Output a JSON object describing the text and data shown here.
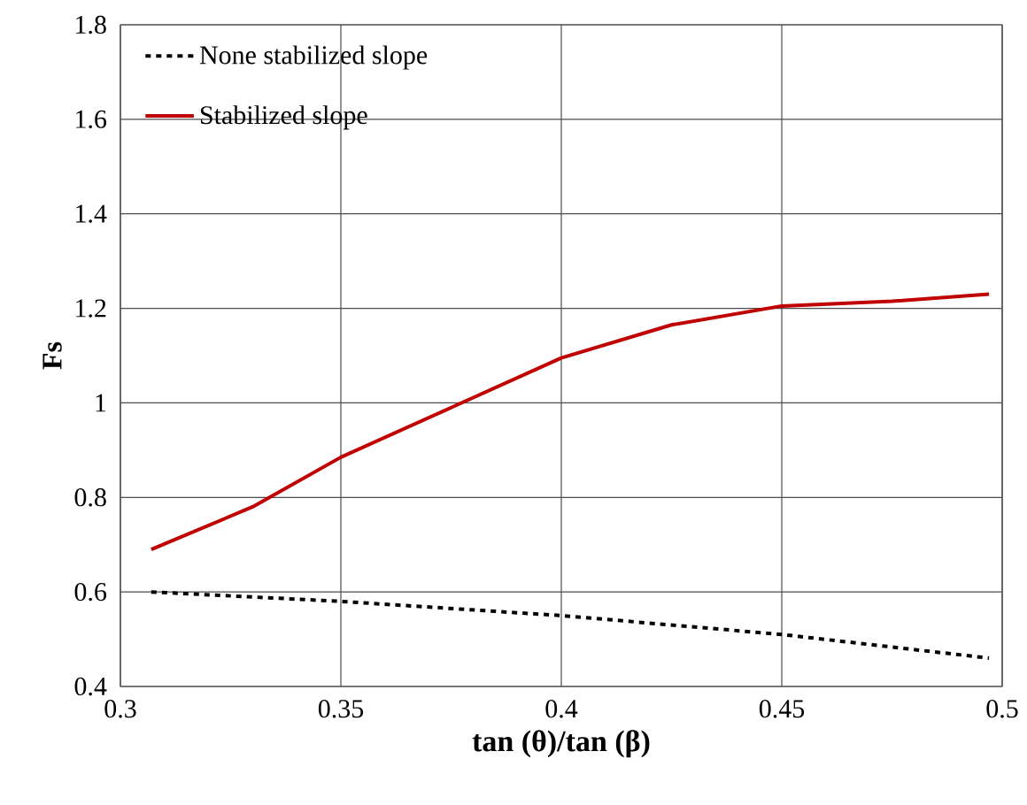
{
  "chart_data": {
    "type": "line",
    "xlabel": "tan (θ)/tan (β)",
    "ylabel": "Fs",
    "xlim": [
      0.3,
      0.5
    ],
    "xticks": [
      0.3,
      0.35,
      0.4,
      0.45,
      0.5
    ],
    "ylim": [
      0.4,
      1.8
    ],
    "yticks": [
      0.4,
      0.6,
      0.8,
      1,
      1.2,
      1.4,
      1.6,
      1.8
    ],
    "grid": true,
    "legend": "top left",
    "series": [
      {
        "name": "None stabilized slope",
        "color": "#000000",
        "line_style": "dashed",
        "x": [
          0.307,
          0.35,
          0.4,
          0.45,
          0.497
        ],
        "values": [
          0.6,
          0.58,
          0.55,
          0.51,
          0.46
        ]
      },
      {
        "name": "Stabilized slope",
        "color": "#c00000",
        "line_style": "solid",
        "x": [
          0.307,
          0.33,
          0.35,
          0.375,
          0.4,
          0.425,
          0.45,
          0.475,
          0.497
        ],
        "values": [
          0.69,
          0.78,
          0.885,
          0.99,
          1.095,
          1.165,
          1.205,
          1.215,
          1.23
        ]
      }
    ]
  }
}
